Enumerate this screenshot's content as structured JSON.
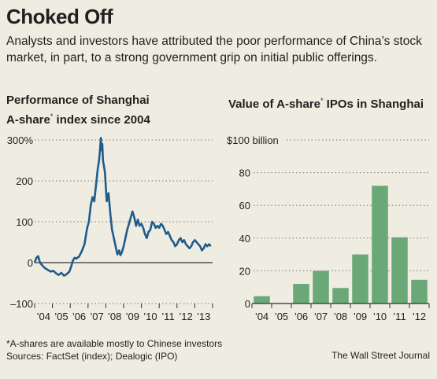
{
  "header": {
    "title": "Choked Off",
    "subtitle": "Analysts and investors have attributed the poor performance of China’s stock market, in part, to a strong government grip on initial public offerings."
  },
  "footer": {
    "footnote": "*A-shares are available mostly to Chinese investors",
    "sources": "Sources: FactSet (index); Dealogic (IPO)",
    "credit": "The Wall Street Journal"
  },
  "colors": {
    "line": "#1f5c8c",
    "bar": "#6aa877",
    "background": "#efece1",
    "grid": "#7a7a7a"
  },
  "chart_data": [
    {
      "type": "line",
      "title_lines": [
        "Performance of Shanghai",
        "A-share",
        " index since 2004"
      ],
      "title_sup": "*",
      "ylim": [
        -100,
        300
      ],
      "yticks": [
        -100,
        0,
        100,
        200,
        300
      ],
      "ytick_labels": [
        "–100",
        "0",
        "100",
        "200",
        "300%"
      ],
      "xlim": [
        2004,
        2014
      ],
      "xticks": [
        2004,
        2005,
        2006,
        2007,
        2008,
        2009,
        2010,
        2011,
        2012,
        2013
      ],
      "xtick_labels": [
        "’04",
        "’05",
        "’06",
        "’07",
        "’08",
        "’09",
        "’10",
        "’11",
        "’12",
        "’13"
      ],
      "series": [
        {
          "x": [
            2004.0,
            2004.1,
            2004.2,
            2004.3,
            2004.45,
            2004.6,
            2004.75,
            2004.9,
            2005.05,
            2005.2,
            2005.35,
            2005.5,
            2005.65,
            2005.8,
            2005.95,
            2006.05,
            2006.15,
            2006.25,
            2006.35,
            2006.5,
            2006.65,
            2006.8,
            2006.95,
            2007.05,
            2007.15,
            2007.25,
            2007.35,
            2007.45,
            2007.55,
            2007.62,
            2007.68,
            2007.72,
            2007.76,
            2007.8,
            2007.84,
            2007.88,
            2007.95,
            2008.05,
            2008.15,
            2008.25,
            2008.35,
            2008.45,
            2008.55,
            2008.65,
            2008.75,
            2008.82,
            2008.9,
            2009.0,
            2009.1,
            2009.2,
            2009.3,
            2009.4,
            2009.5,
            2009.6,
            2009.7,
            2009.8,
            2009.9,
            2010.0,
            2010.1,
            2010.2,
            2010.3,
            2010.4,
            2010.5,
            2010.6,
            2010.7,
            2010.8,
            2010.9,
            2011.0,
            2011.1,
            2011.2,
            2011.3,
            2011.4,
            2011.5,
            2011.6,
            2011.7,
            2011.8,
            2011.9,
            2012.0,
            2012.1,
            2012.2,
            2012.3,
            2012.4,
            2012.5,
            2012.6,
            2012.7,
            2012.8,
            2012.9,
            2013.0,
            2013.1,
            2013.2,
            2013.3,
            2013.4,
            2013.5,
            2013.6,
            2013.7,
            2013.8,
            2013.9
          ],
          "y": [
            0,
            12,
            16,
            0,
            -8,
            -14,
            -18,
            -22,
            -20,
            -26,
            -30,
            -25,
            -32,
            -28,
            -22,
            -10,
            5,
            12,
            10,
            15,
            28,
            45,
            85,
            100,
            140,
            160,
            150,
            190,
            230,
            250,
            280,
            305,
            275,
            290,
            250,
            240,
            220,
            150,
            170,
            120,
            80,
            60,
            40,
            20,
            30,
            18,
            25,
            40,
            60,
            80,
            95,
            110,
            125,
            110,
            90,
            105,
            90,
            95,
            85,
            70,
            60,
            75,
            80,
            100,
            95,
            85,
            90,
            85,
            95,
            90,
            80,
            70,
            75,
            65,
            55,
            50,
            40,
            45,
            55,
            60,
            50,
            55,
            45,
            40,
            35,
            40,
            50,
            55,
            50,
            45,
            40,
            30,
            35,
            45,
            40,
            45,
            40
          ]
        }
      ],
      "grid": "horizontal dotted"
    },
    {
      "type": "bar",
      "title_lines": [
        "Value of A-share",
        " IPOs in Shanghai"
      ],
      "title_sup": "*",
      "ylim": [
        0,
        100
      ],
      "yticks": [
        0,
        20,
        40,
        60,
        80,
        100
      ],
      "ytick_labels": [
        "0",
        "20",
        "40",
        "60",
        "80",
        "$100 billion"
      ],
      "categories": [
        "’04",
        "’05",
        "’06",
        "’07",
        "’08",
        "’09",
        "’10",
        "’11",
        "’12"
      ],
      "values": [
        4.5,
        0.3,
        12,
        20,
        9.5,
        30,
        72,
        40.5,
        14.5
      ],
      "grid": "horizontal dotted"
    }
  ]
}
